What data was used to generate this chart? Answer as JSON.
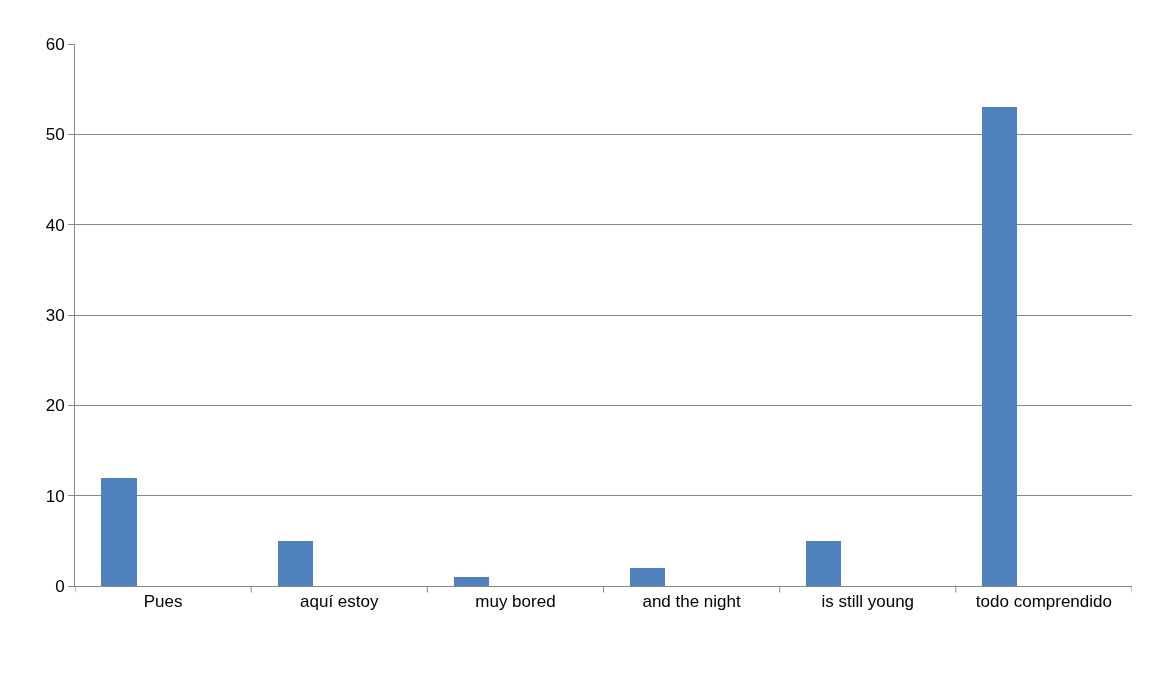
{
  "chart_data": {
    "type": "bar",
    "categories": [
      "Pues",
      "aquí estoy",
      "muy bored",
      "and the night",
      "is still young",
      "todo comprendido"
    ],
    "values": [
      12,
      5,
      1,
      2,
      5,
      53
    ],
    "color": "#4f81bd",
    "ylim": [
      0,
      60
    ],
    "yticks": [
      0,
      10,
      20,
      30,
      40,
      50,
      60
    ],
    "grid": "y"
  }
}
